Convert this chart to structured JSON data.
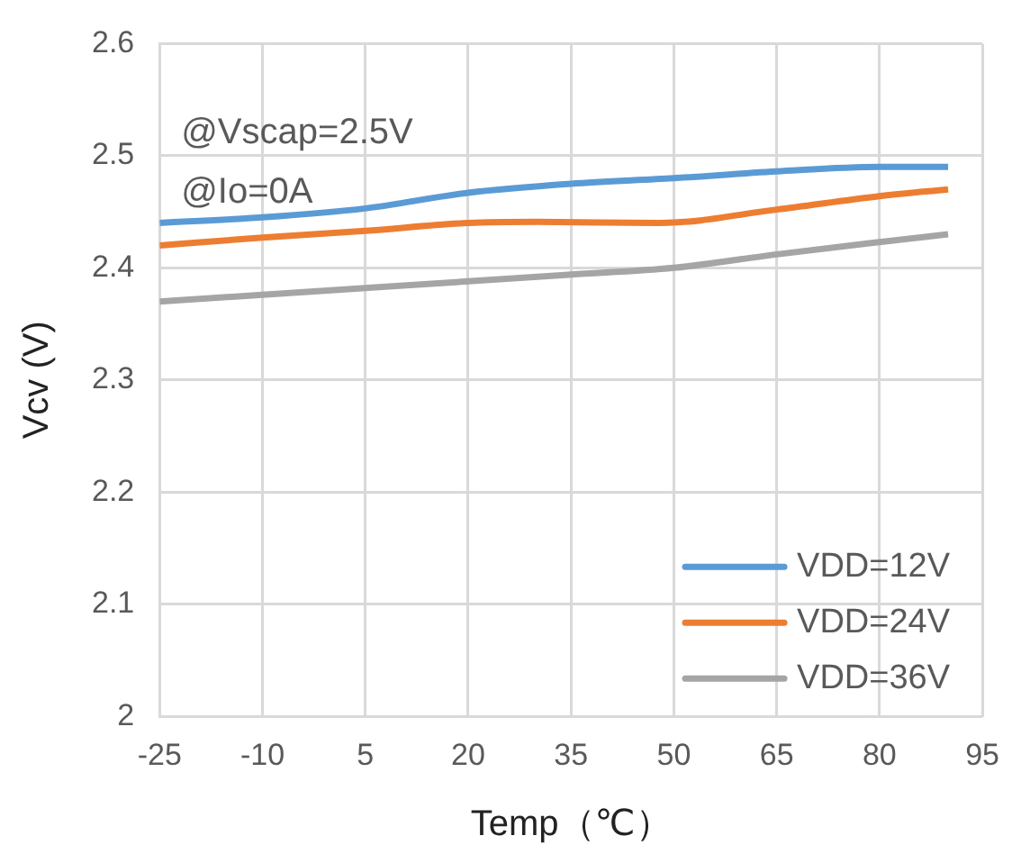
{
  "chart_data": {
    "type": "line",
    "xlabel": "Temp（℃）",
    "ylabel": "Vcv (V)",
    "annotations": [
      "@Vscap=2.5V",
      "@Io=0A"
    ],
    "xlim": [
      -25,
      95
    ],
    "xticks": [
      -25,
      -10,
      5,
      20,
      35,
      50,
      65,
      80,
      95
    ],
    "ylim": [
      2,
      2.6
    ],
    "yticks": [
      {
        "value": 2,
        "label": "2"
      },
      {
        "value": 2.1,
        "label": "2.1"
      },
      {
        "value": 2.2,
        "label": "2.2"
      },
      {
        "value": 2.3,
        "label": "2.3"
      },
      {
        "value": 2.4,
        "label": "2.4"
      },
      {
        "value": 2.5,
        "label": "2.5"
      },
      {
        "value": 2.6,
        "label": "2.6"
      }
    ],
    "grid": true,
    "legend": "bottom right",
    "marker": "none",
    "line_style": "solid",
    "series": [
      {
        "name": "VDD=12V",
        "color": "#5b9bd5",
        "x": [
          -25,
          -10,
          5,
          20,
          35,
          50,
          65,
          80,
          90
        ],
        "values": [
          2.44,
          2.445,
          2.453,
          2.467,
          2.475,
          2.48,
          2.486,
          2.49,
          2.49
        ]
      },
      {
        "name": "VDD=24V",
        "color": "#ed7d31",
        "x": [
          -25,
          -10,
          5,
          20,
          30,
          48,
          65,
          80,
          90
        ],
        "values": [
          2.42,
          2.427,
          2.433,
          2.44,
          2.441,
          2.44,
          2.452,
          2.464,
          2.47
        ]
      },
      {
        "name": "VDD=36V",
        "color": "#a5a5a5",
        "x": [
          -25,
          -10,
          5,
          20,
          35,
          50,
          65,
          80,
          90
        ],
        "values": [
          2.37,
          2.376,
          2.382,
          2.388,
          2.394,
          2.4,
          2.412,
          2.423,
          2.43
        ]
      }
    ]
  }
}
